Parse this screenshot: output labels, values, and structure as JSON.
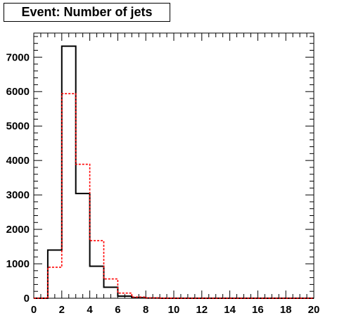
{
  "title": "Event: Number of jets",
  "chart_data": {
    "type": "histogram",
    "title": "Event: Number of jets",
    "xlabel": "",
    "ylabel": "",
    "xlim": [
      0,
      20
    ],
    "ylim": [
      0,
      7700
    ],
    "bin_width": 1,
    "x_ticks": [
      0,
      2,
      4,
      6,
      8,
      10,
      12,
      14,
      16,
      18,
      20
    ],
    "y_ticks": [
      0,
      1000,
      2000,
      3000,
      4000,
      5000,
      6000,
      7000
    ],
    "grid": false,
    "legend": "none",
    "series": [
      {
        "style": "solid",
        "color": "#000000",
        "values": [
          0,
          1400,
          7320,
          3040,
          930,
          320,
          60,
          15,
          5,
          0,
          0,
          0,
          0,
          0,
          0,
          0,
          0,
          0,
          0,
          0
        ]
      },
      {
        "style": "dashed",
        "color": "#ff0000",
        "values": [
          0,
          900,
          5940,
          3890,
          1670,
          560,
          150,
          35,
          10,
          4,
          0,
          0,
          0,
          0,
          0,
          0,
          0,
          0,
          0,
          0
        ]
      }
    ]
  }
}
